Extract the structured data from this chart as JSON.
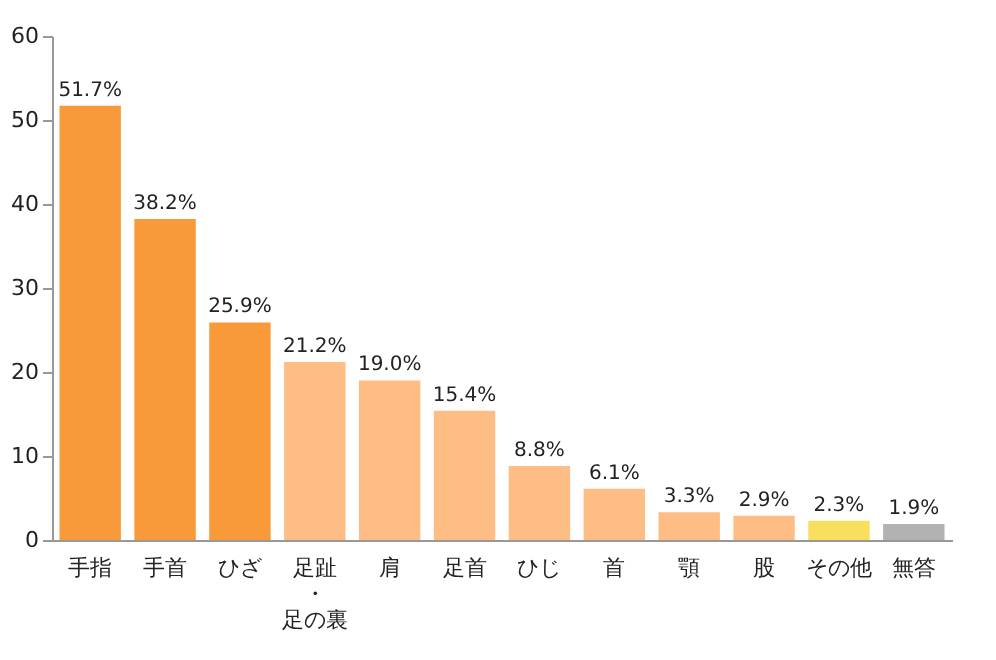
{
  "chart_data": {
    "type": "bar",
    "categories": [
      "手指",
      "手首",
      "ひざ",
      "足趾・足の裏",
      "肩",
      "足首",
      "ひじ",
      "首",
      "顎",
      "股",
      "その他",
      "無答"
    ],
    "values": [
      51.7,
      38.2,
      25.9,
      21.2,
      19.0,
      15.4,
      8.8,
      6.1,
      3.3,
      2.9,
      2.3,
      1.9
    ],
    "colors": [
      "#f89a3a",
      "#f89a3a",
      "#f89a3a",
      "#fdbd85",
      "#fdbd85",
      "#fdbd85",
      "#fdbd85",
      "#fdbd85",
      "#fdbd85",
      "#fdbd85",
      "#f8df5e",
      "#b2b2b2"
    ],
    "value_labels": [
      "51.7%",
      "38.2%",
      "25.9%",
      "21.2%",
      "19.0%",
      "15.4%",
      "8.8%",
      "6.1%",
      "3.3%",
      "2.9%",
      "2.3%",
      "1.9%"
    ],
    "ylim": [
      0,
      60
    ],
    "yticks": [
      0,
      10,
      20,
      30,
      40,
      50,
      60
    ],
    "grid": false
  }
}
